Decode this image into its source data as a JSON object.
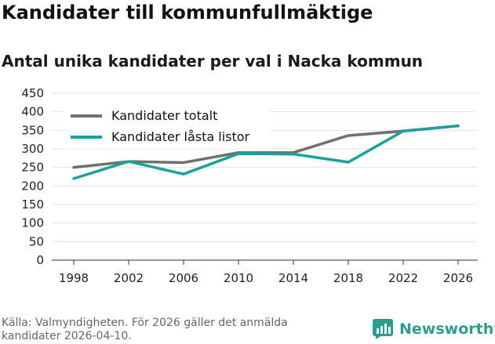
{
  "title": "Kandidater till kommunfullmäktige",
  "subtitle": "Antal unika kandidater per val i Nacka kommun",
  "source": "Källa: Valmyndigheten. För 2026 gäller det anmälda kandidater 2026-04-10.",
  "brand": {
    "name": "Newsworthy",
    "icon": "newsworthy-logo-icon",
    "color": "#2a9d8f"
  },
  "chart_data": {
    "type": "line",
    "title": "Kandidater till kommunfullmäktige",
    "subtitle": "Antal unika kandidater per val i Nacka kommun",
    "xlabel": "",
    "ylabel": "",
    "ylim": [
      0,
      450
    ],
    "yticks": [
      0,
      50,
      100,
      150,
      200,
      250,
      300,
      350,
      400,
      450
    ],
    "grid": true,
    "legend_position": "top-left",
    "categories": [
      "1998",
      "2002",
      "2006",
      "2010",
      "2014",
      "2018",
      "2022",
      "2026"
    ],
    "series": [
      {
        "name": "Kandidater totalt",
        "color": "#707070",
        "values": [
          250,
          266,
          263,
          290,
          290,
          336,
          348,
          362
        ]
      },
      {
        "name": "Kandidater låsta listor",
        "color": "#18a29a",
        "values": [
          220,
          266,
          232,
          287,
          286,
          264,
          348,
          362
        ]
      }
    ]
  }
}
